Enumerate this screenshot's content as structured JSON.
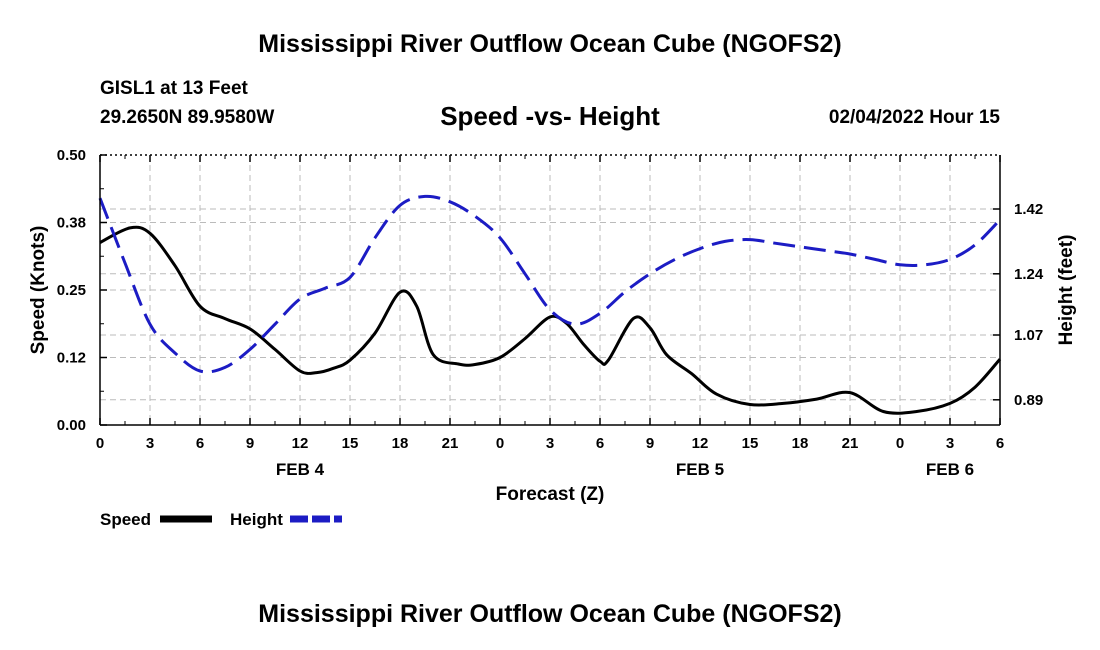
{
  "header": {
    "title": "Mississippi River Outflow Ocean Cube (NGOFS2)",
    "station": "GISL1 at 13 Feet",
    "coordinates": "29.2650N  89.9580W",
    "subtitle": "Speed -vs- Height",
    "date": "02/04/2022 Hour 15"
  },
  "footer": {
    "title": "Mississippi River Outflow Ocean Cube (NGOFS2)"
  },
  "chart_data": {
    "type": "line",
    "title": "Speed -vs- Height",
    "xlabel": "Forecast (Z)",
    "ylabel_left": "Speed (Knots)",
    "ylabel_right": "Height (feet)",
    "x_unit": "hours from Feb 4 00Z",
    "xlim": [
      0,
      54
    ],
    "x_ticks": [
      0,
      3,
      6,
      9,
      12,
      15,
      18,
      21,
      24,
      27,
      30,
      33,
      36,
      39,
      42,
      45,
      48,
      51,
      54
    ],
    "x_tick_labels": [
      "0",
      "3",
      "6",
      "9",
      "12",
      "15",
      "18",
      "21",
      "0",
      "3",
      "6",
      "9",
      "12",
      "15",
      "18",
      "21",
      "0",
      "3",
      "6"
    ],
    "day_labels": [
      {
        "x": 12,
        "label": "FEB 4"
      },
      {
        "x": 36,
        "label": "FEB 5"
      },
      {
        "x": 51,
        "label": "FEB 6"
      }
    ],
    "ylim_left": [
      0,
      0.5
    ],
    "y_ticks_left": [
      0,
      0.125,
      0.25,
      0.375,
      0.5
    ],
    "y_tick_labels_left": [
      "0.00",
      "0.12",
      "0.25",
      "0.38",
      "0.50"
    ],
    "ylim_right": [
      0.82,
      1.57
    ],
    "y_ticks_right": [
      0.89,
      1.07,
      1.24,
      1.42
    ],
    "y_tick_labels_right": [
      "0.89",
      "1.07",
      "1.24",
      "1.42"
    ],
    "grid": true,
    "series": [
      {
        "name": "Speed",
        "axis": "left",
        "color": "#000000",
        "dash": "solid",
        "x": [
          0,
          1.8,
          3,
          4.5,
          6,
          7.5,
          9,
          10.5,
          12,
          13,
          14,
          15,
          16.5,
          18,
          19,
          20,
          21.5,
          22.5,
          24,
          25.5,
          27,
          28,
          29,
          30,
          30.5,
          32,
          33,
          34,
          35.5,
          37,
          39,
          41,
          43,
          45,
          47,
          49,
          51,
          52.5,
          54
        ],
        "y": [
          0.338,
          0.365,
          0.355,
          0.295,
          0.22,
          0.197,
          0.178,
          0.14,
          0.1,
          0.097,
          0.105,
          0.12,
          0.17,
          0.246,
          0.22,
          0.13,
          0.113,
          0.112,
          0.125,
          0.16,
          0.2,
          0.188,
          0.15,
          0.118,
          0.12,
          0.197,
          0.18,
          0.13,
          0.095,
          0.057,
          0.038,
          0.04,
          0.048,
          0.06,
          0.025,
          0.025,
          0.04,
          0.07,
          0.122
        ]
      },
      {
        "name": "Height",
        "axis": "right",
        "color": "#1c1cc4",
        "dash": "dashed",
        "x": [
          0,
          1.5,
          3,
          4.5,
          6,
          7.5,
          9,
          10.5,
          12,
          13.5,
          15,
          16.5,
          18,
          19.5,
          21,
          22.5,
          24,
          25.5,
          27,
          28.5,
          30,
          31.5,
          33,
          34.5,
          36,
          37.5,
          39,
          40.5,
          42,
          43.5,
          45,
          46.5,
          48,
          49.5,
          51,
          52.5,
          54
        ],
        "y": [
          1.45,
          1.27,
          1.1,
          1.02,
          0.97,
          0.98,
          1.03,
          1.1,
          1.17,
          1.2,
          1.23,
          1.34,
          1.43,
          1.455,
          1.44,
          1.4,
          1.34,
          1.24,
          1.14,
          1.1,
          1.13,
          1.19,
          1.24,
          1.28,
          1.31,
          1.33,
          1.335,
          1.325,
          1.315,
          1.305,
          1.295,
          1.28,
          1.265,
          1.265,
          1.28,
          1.32,
          1.39
        ]
      }
    ]
  }
}
